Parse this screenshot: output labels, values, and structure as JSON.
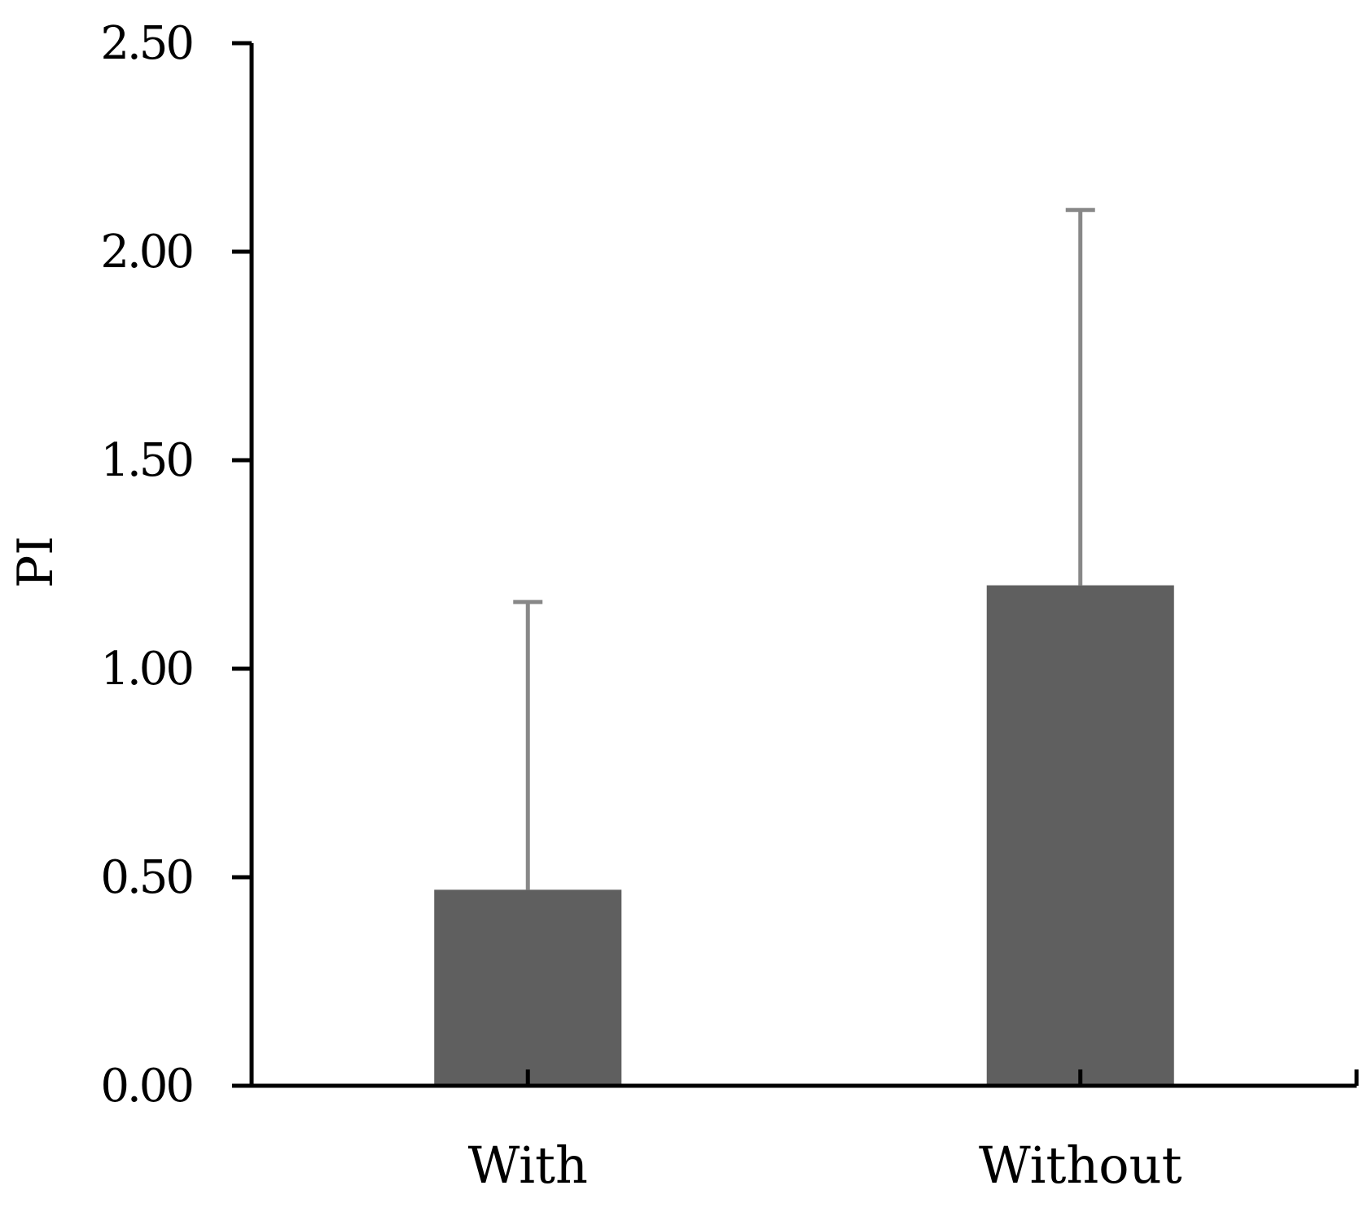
{
  "chart_data": {
    "type": "bar",
    "categories": [
      "With",
      "Without"
    ],
    "values": [
      0.47,
      1.2
    ],
    "error_upper": [
      1.16,
      2.1
    ],
    "ylabel": "PI",
    "xlabel": "",
    "ylim": [
      0,
      2.5
    ],
    "yticks": [
      "0.00",
      "0.50",
      "1.00",
      "1.50",
      "2.00",
      "2.50"
    ],
    "ytick_values": [
      0,
      0.5,
      1.0,
      1.5,
      2.0,
      2.5
    ],
    "grid": false,
    "legend": "none",
    "colors": {
      "bar": "#5f5f5f",
      "error_bar": "#888888",
      "axis": "#000000"
    }
  }
}
